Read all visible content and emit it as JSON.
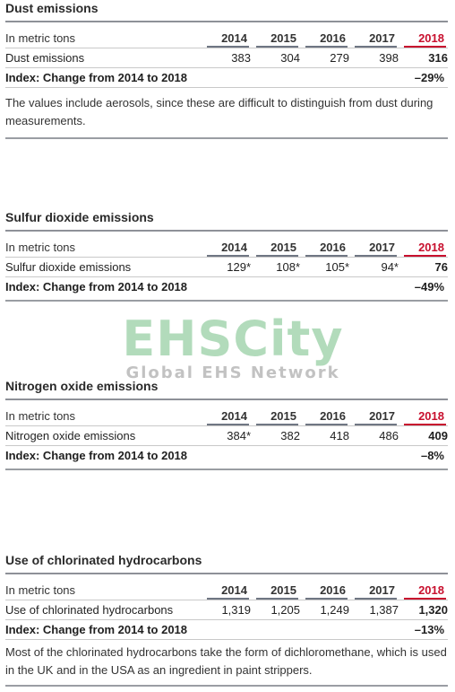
{
  "years": [
    "2014",
    "2015",
    "2016",
    "2017",
    "2018"
  ],
  "unit_label": "In metric tons",
  "index_label": "Index: Change from 2014 to 2018",
  "colors": {
    "highlight_year": "#c8102e",
    "header_rule": "#6f7683",
    "watermark_green": "#67b97a"
  },
  "sections": [
    {
      "title": "Dust emissions",
      "row_label": "Dust emissions",
      "values": [
        "383",
        "304",
        "279",
        "398",
        "316"
      ],
      "index_value": "–29%",
      "note": "The values include aerosols, since these are difficult to distinguish from dust during measurements."
    },
    {
      "title": "Sulfur dioxide emissions",
      "row_label": "Sulfur dioxide emissions",
      "values": [
        "129*",
        "108*",
        "105*",
        "94*",
        "76"
      ],
      "index_value": "–49%"
    },
    {
      "title": "Nitrogen oxide emissions",
      "row_label": "Nitrogen oxide emissions",
      "values": [
        "384*",
        "382",
        "418",
        "486",
        "409"
      ],
      "index_value": "–8%"
    },
    {
      "title": "Use of chlorinated hydrocarbons",
      "row_label": "Use of chlorinated hydrocarbons",
      "values": [
        "1,319",
        "1,205",
        "1,249",
        "1,387",
        "1,320"
      ],
      "index_value": "–13%",
      "note": "Most of the chlorinated hydrocarbons take the form of dichloromethane, which is used in the UK and in the USA as an ingredient in paint strippers."
    }
  ],
  "watermark": {
    "brand": "EHSCity",
    "tagline": "Global EHS Network"
  }
}
